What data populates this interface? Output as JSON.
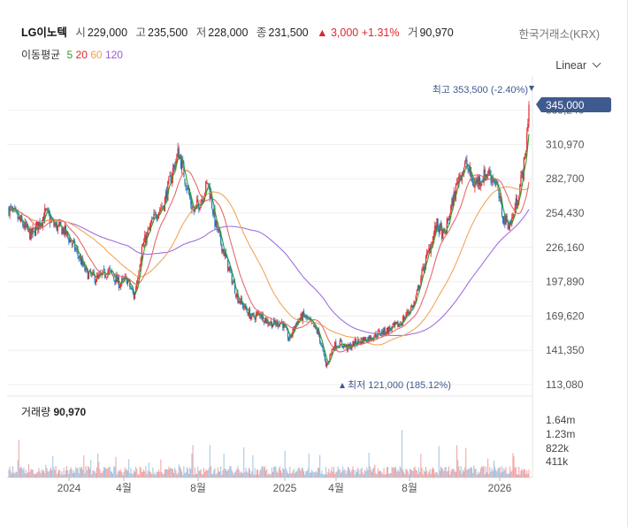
{
  "header": {
    "name": "LG이노텍",
    "open_label": "시",
    "open": "229,000",
    "high_label": "고",
    "high": "235,500",
    "low_label": "저",
    "low": "228,000",
    "close_label": "종",
    "close": "231,500",
    "change": "▲ 3,000",
    "change_pct": "+1.31%",
    "volume_label": "거",
    "volume": "90,970",
    "exchange": "한국거래소(KRX)",
    "scale": "Linear"
  },
  "moving_averages": {
    "label": "이동평균",
    "periods": [
      {
        "text": "5",
        "color": "#2ca02c"
      },
      {
        "text": "20",
        "color": "#e0262f"
      },
      {
        "text": "60",
        "color": "#f39c4a"
      },
      {
        "text": "120",
        "color": "#9b59d6"
      }
    ]
  },
  "colors": {
    "up": "#e0262f",
    "down": "#1f77b4",
    "ma5": "#2ca02c",
    "ma20": "#e66b6b",
    "ma60": "#f2a55a",
    "ma120": "#a070dd",
    "current_badge": "#3f5a8f"
  },
  "volume_panel": {
    "title": "거래량",
    "value": "90,970",
    "ticks": [
      "1.64m",
      "1.23m",
      "822k",
      "411k"
    ]
  },
  "chart_data": {
    "type": "candlestick",
    "y_ticks": [
      "113,080",
      "141,350",
      "169,620",
      "197,890",
      "226,160",
      "254,430",
      "282,700",
      "310,970",
      "339,240"
    ],
    "x_ticks": [
      "2024",
      "4월",
      "8월",
      "2025",
      "4월",
      "8월",
      "2026"
    ],
    "ylim": [
      113080,
      353500
    ],
    "current_price": "345,000",
    "high_annotation": "최고 353,500 (-2.40%)",
    "low_annotation": "최저 121,000 (185.12%)",
    "close_series": [
      {
        "t": 0,
        "v": 258000
      },
      {
        "t": 3,
        "v": 248000
      },
      {
        "t": 6,
        "v": 236000
      },
      {
        "t": 8,
        "v": 245000
      },
      {
        "t": 10,
        "v": 255000
      },
      {
        "t": 12,
        "v": 245000
      },
      {
        "t": 15,
        "v": 240000
      },
      {
        "t": 18,
        "v": 225000
      },
      {
        "t": 21,
        "v": 205000
      },
      {
        "t": 24,
        "v": 200000
      },
      {
        "t": 27,
        "v": 207000
      },
      {
        "t": 30,
        "v": 196000
      },
      {
        "t": 32,
        "v": 200000
      },
      {
        "t": 34,
        "v": 185000
      },
      {
        "t": 36,
        "v": 225000
      },
      {
        "t": 38,
        "v": 240000
      },
      {
        "t": 40,
        "v": 255000
      },
      {
        "t": 42,
        "v": 262000
      },
      {
        "t": 44,
        "v": 285000
      },
      {
        "t": 46,
        "v": 305000
      },
      {
        "t": 48,
        "v": 280000
      },
      {
        "t": 50,
        "v": 255000
      },
      {
        "t": 52,
        "v": 265000
      },
      {
        "t": 54,
        "v": 280000
      },
      {
        "t": 56,
        "v": 245000
      },
      {
        "t": 58,
        "v": 225000
      },
      {
        "t": 60,
        "v": 205000
      },
      {
        "t": 62,
        "v": 185000
      },
      {
        "t": 64,
        "v": 176000
      },
      {
        "t": 66,
        "v": 168000
      },
      {
        "t": 68,
        "v": 172000
      },
      {
        "t": 70,
        "v": 165000
      },
      {
        "t": 72,
        "v": 163000
      },
      {
        "t": 74,
        "v": 165000
      },
      {
        "t": 76,
        "v": 150000
      },
      {
        "t": 78,
        "v": 165000
      },
      {
        "t": 80,
        "v": 170000
      },
      {
        "t": 82,
        "v": 163000
      },
      {
        "t": 84,
        "v": 155000
      },
      {
        "t": 86,
        "v": 128000
      },
      {
        "t": 88,
        "v": 145000
      },
      {
        "t": 90,
        "v": 147000
      },
      {
        "t": 92,
        "v": 143000
      },
      {
        "t": 94,
        "v": 148000
      },
      {
        "t": 96,
        "v": 150000
      },
      {
        "t": 98,
        "v": 152000
      },
      {
        "t": 100,
        "v": 155000
      },
      {
        "t": 102,
        "v": 157000
      },
      {
        "t": 104,
        "v": 160000
      },
      {
        "t": 106,
        "v": 163000
      },
      {
        "t": 108,
        "v": 172000
      },
      {
        "t": 110,
        "v": 180000
      },
      {
        "t": 112,
        "v": 205000
      },
      {
        "t": 114,
        "v": 225000
      },
      {
        "t": 116,
        "v": 245000
      },
      {
        "t": 118,
        "v": 235000
      },
      {
        "t": 120,
        "v": 260000
      },
      {
        "t": 122,
        "v": 285000
      },
      {
        "t": 124,
        "v": 295000
      },
      {
        "t": 126,
        "v": 278000
      },
      {
        "t": 128,
        "v": 283000
      },
      {
        "t": 130,
        "v": 288000
      },
      {
        "t": 132,
        "v": 280000
      },
      {
        "t": 134,
        "v": 250000
      },
      {
        "t": 136,
        "v": 245000
      },
      {
        "t": 138,
        "v": 268000
      },
      {
        "t": 140,
        "v": 300000
      },
      {
        "t": 141,
        "v": 345000
      }
    ]
  }
}
